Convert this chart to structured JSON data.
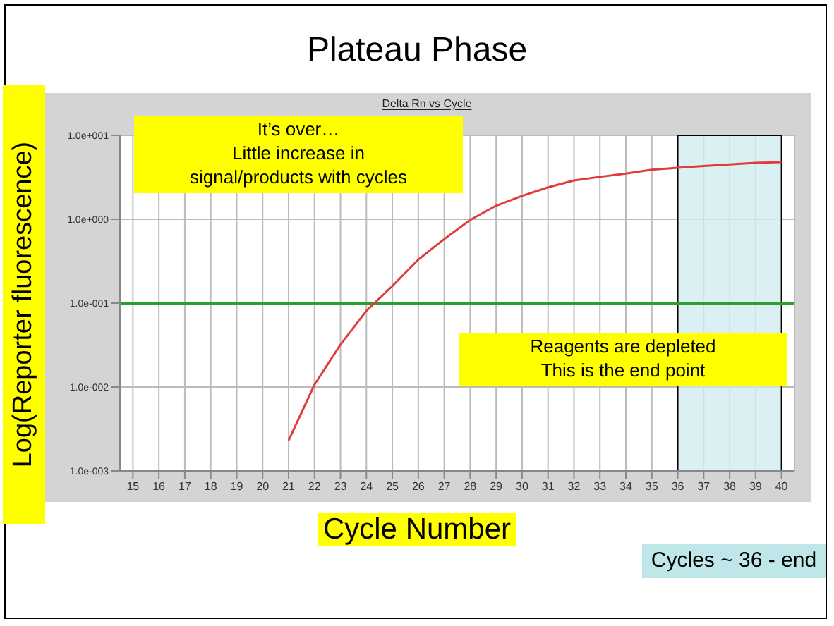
{
  "chart_data": {
    "type": "line",
    "title": "Plateau Phase",
    "subtitle": "Delta Rn vs Cycle",
    "xlabel": "Cycle Number",
    "ylabel": "Log(Reporter fluorescence)",
    "x": [
      21,
      22,
      23,
      24,
      25,
      26,
      27,
      28,
      29,
      30,
      31,
      32,
      33,
      34,
      35,
      36,
      37,
      38,
      39,
      40
    ],
    "series": [
      {
        "color": "#e03c3c",
        "values": [
          0.0023,
          0.0107,
          0.032,
          0.081,
          0.16,
          0.33,
          0.58,
          0.98,
          1.45,
          1.9,
          2.4,
          2.9,
          3.2,
          3.5,
          3.9,
          4.1,
          4.3,
          4.5,
          4.7,
          4.8
        ]
      }
    ],
    "log": "y",
    "xlim": [
      14.5,
      40.5
    ],
    "xticks": [
      15,
      16,
      17,
      18,
      19,
      20,
      21,
      22,
      23,
      24,
      25,
      26,
      27,
      28,
      29,
      30,
      31,
      32,
      33,
      34,
      35,
      36,
      37,
      38,
      39,
      40
    ],
    "ylim": [
      0.001,
      10
    ],
    "yticks": [
      {
        "value": 0.001,
        "label": "1.0e-003"
      },
      {
        "value": 0.01,
        "label": "1.0e-002"
      },
      {
        "value": 0.1,
        "label": "1.0e-001"
      },
      {
        "value": 1,
        "label": "1.0e+000"
      },
      {
        "value": 10,
        "label": "1.0e+001"
      }
    ],
    "grid": true,
    "marker": "none",
    "line_style": "solid",
    "ref_lines": [
      {
        "axis": "y",
        "value": 0.1,
        "color": "#2ca02c"
      }
    ],
    "bands": [
      {
        "axis": "x",
        "from": 36,
        "to": 40,
        "color": "#d2ecef"
      }
    ],
    "annotations": [
      "It’s over…\nLittle increase in\nsignal/products with cycles",
      "Reagents are depleted\nThis is the end point",
      "Cycles ~ 36 - end"
    ]
  }
}
